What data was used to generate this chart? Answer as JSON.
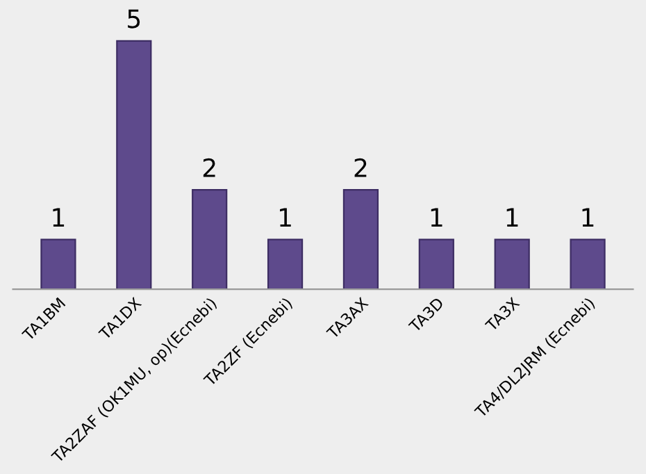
{
  "chart_data": {
    "type": "bar",
    "categories": [
      "TA1BM",
      "TA1DX",
      "TA2ZAF (OK1MU, op)(Ecnebi)",
      "TA2ZF (Ecnebi)",
      "TA3AX",
      "TA3D",
      "TA3X",
      "TA4/DL2JRM (Ecnebi)"
    ],
    "values": [
      1,
      5,
      2,
      1,
      2,
      1,
      1,
      1
    ],
    "color": "#5e4a8c",
    "data_labels": true,
    "grid": false,
    "legend": false
  }
}
